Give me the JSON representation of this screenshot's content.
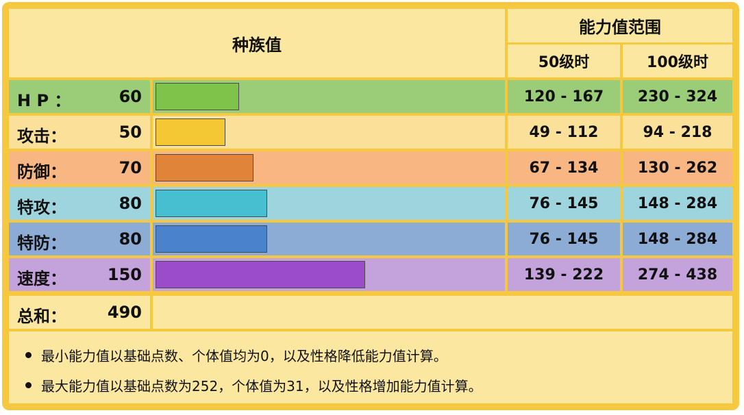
{
  "header": {
    "base_stats_label": "种族值",
    "range_label": "能力值范围",
    "level50_label": "50级时",
    "level100_label": "100级时"
  },
  "stats": [
    {
      "label": "H P ：",
      "value": 60,
      "lv50": "120 - 167",
      "lv100": "230 - 324",
      "row_color": "#9bcc78",
      "bar_color": "#7fc34a"
    },
    {
      "label": "攻击：",
      "value": 50,
      "lv50": "49 - 112",
      "lv100": "94 - 218",
      "row_color": "#fbe09a",
      "bar_color": "#f4c735"
    },
    {
      "label": "防御：",
      "value": 70,
      "lv50": "67 - 134",
      "lv100": "130 - 262",
      "row_color": "#f8b682",
      "bar_color": "#e0843a"
    },
    {
      "label": "特攻：",
      "value": 80,
      "lv50": "76 - 145",
      "lv100": "148 - 284",
      "row_color": "#9ed4dd",
      "bar_color": "#48bfd1"
    },
    {
      "label": "特防：",
      "value": 80,
      "lv50": "76 - 145",
      "lv100": "148 - 284",
      "row_color": "#8cacd6",
      "bar_color": "#4a82cc"
    },
    {
      "label": "速度：",
      "value": 150,
      "lv50": "139 - 222",
      "lv100": "274 - 438",
      "row_color": "#c4a2dc",
      "bar_color": "#9a4cc9"
    }
  ],
  "total": {
    "label": "总和：",
    "value": 490
  },
  "notes": [
    "最小能力值以基础点数、个体值均为0，以及性格降低能力值计算。",
    "最大能力值以基础点数为252，个体值为31，以及性格增加能力值计算。"
  ],
  "colors": {
    "frame": "#f6c83f",
    "header_bg": "#fbe7a0",
    "bar_border": "#4a4a4a"
  }
}
